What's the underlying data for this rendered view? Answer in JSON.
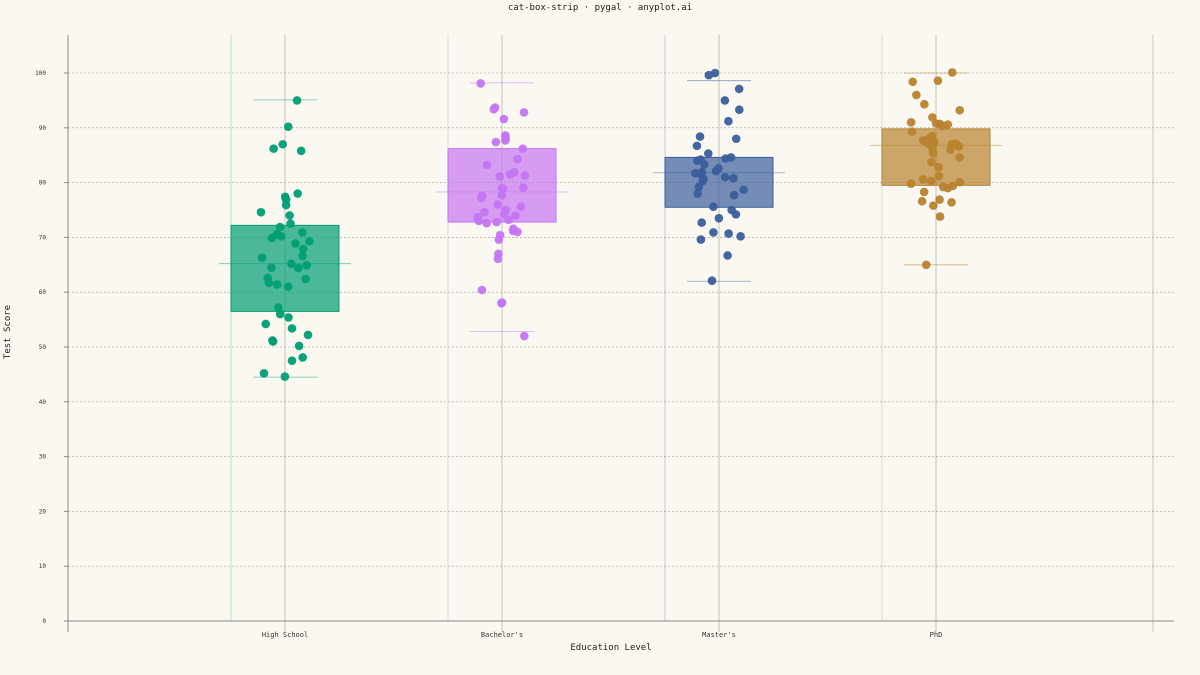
{
  "chart_data": {
    "type": "box",
    "title": "cat-box-strip · pygal · anyplot.ai",
    "xlabel": "Education Level",
    "ylabel": "Test Score",
    "ylim": [
      0,
      100
    ],
    "yticks": [
      0,
      10,
      20,
      30,
      40,
      50,
      60,
      70,
      80,
      90,
      100
    ],
    "grid": true,
    "categories": [
      "High School",
      "Bachelor's",
      "Master's",
      "PhD"
    ],
    "series": [
      {
        "category": "High School",
        "color": "#009E73",
        "box": {
          "whisker_low": 44.5,
          "q1": 56.5,
          "median": 65.2,
          "q3": 72.2,
          "whisker_high": 95.1
        },
        "points": [
          95.0,
          90.2,
          87.0,
          86.2,
          85.8,
          78.0,
          77.4,
          76.9,
          75.9,
          74.6,
          74.0,
          72.5,
          71.9,
          70.9,
          70.6,
          70.2,
          69.9,
          69.3,
          68.9,
          67.9,
          66.6,
          66.3,
          65.2,
          64.9,
          64.5,
          64.4,
          62.6,
          62.4,
          61.7,
          61.4,
          61.0,
          57.2,
          56.0,
          55.4,
          54.2,
          53.4,
          52.2,
          51.2,
          51.0,
          50.2,
          48.1,
          47.5,
          45.2,
          44.6
        ]
      },
      {
        "category": "Bachelor's",
        "color": "#C475F2",
        "box": {
          "whisker_low": 52.8,
          "q1": 72.8,
          "median": 78.3,
          "q3": 86.2,
          "whisker_high": 98.2
        },
        "points": [
          98.1,
          93.7,
          93.4,
          92.8,
          91.6,
          88.6,
          88.4,
          88.0,
          87.7,
          87.4,
          86.2,
          84.3,
          83.2,
          81.9,
          81.5,
          81.3,
          81.1,
          79.1,
          79.0,
          78.9,
          77.7,
          77.6,
          77.2,
          76.0,
          75.6,
          75.0,
          74.6,
          74.2,
          74.0,
          73.7,
          73.2,
          73.0,
          72.8,
          72.6,
          71.6,
          71.2,
          71.0,
          70.4,
          69.6,
          67.0,
          66.1,
          60.4,
          58.1,
          58.0,
          52.0
        ]
      },
      {
        "category": "Master's",
        "color": "#3A5E9C",
        "box": {
          "whisker_low": 62.0,
          "q1": 75.5,
          "median": 81.8,
          "q3": 84.6,
          "whisker_high": 98.6
        },
        "points": [
          100.0,
          99.6,
          97.1,
          95.0,
          93.3,
          91.2,
          88.4,
          88.0,
          86.7,
          85.3,
          84.6,
          84.4,
          84.2,
          84.0,
          83.3,
          82.6,
          82.1,
          81.9,
          81.7,
          81.5,
          81.0,
          80.8,
          80.7,
          80.3,
          79.2,
          78.7,
          78.0,
          77.7,
          75.6,
          75.0,
          74.2,
          73.5,
          72.7,
          70.9,
          70.7,
          70.2,
          69.6,
          66.7,
          62.1
        ]
      },
      {
        "category": "PhD",
        "color": "#B8822E",
        "box": {
          "whisker_low": 65.0,
          "q1": 79.5,
          "median": 86.8,
          "q3": 89.8,
          "whisker_high": 100.0
        },
        "points": [
          100.1,
          98.6,
          98.4,
          96.0,
          94.3,
          93.2,
          91.9,
          91.0,
          90.8,
          90.7,
          90.6,
          90.3,
          89.3,
          88.5,
          88.0,
          87.7,
          87.4,
          87.2,
          87.1,
          87.0,
          86.9,
          86.6,
          86.3,
          86.0,
          85.3,
          84.6,
          83.7,
          82.8,
          81.2,
          80.6,
          80.3,
          80.1,
          79.8,
          79.4,
          79.2,
          79.0,
          78.3,
          76.9,
          76.6,
          76.4,
          75.8,
          73.8,
          65.0
        ]
      }
    ]
  }
}
